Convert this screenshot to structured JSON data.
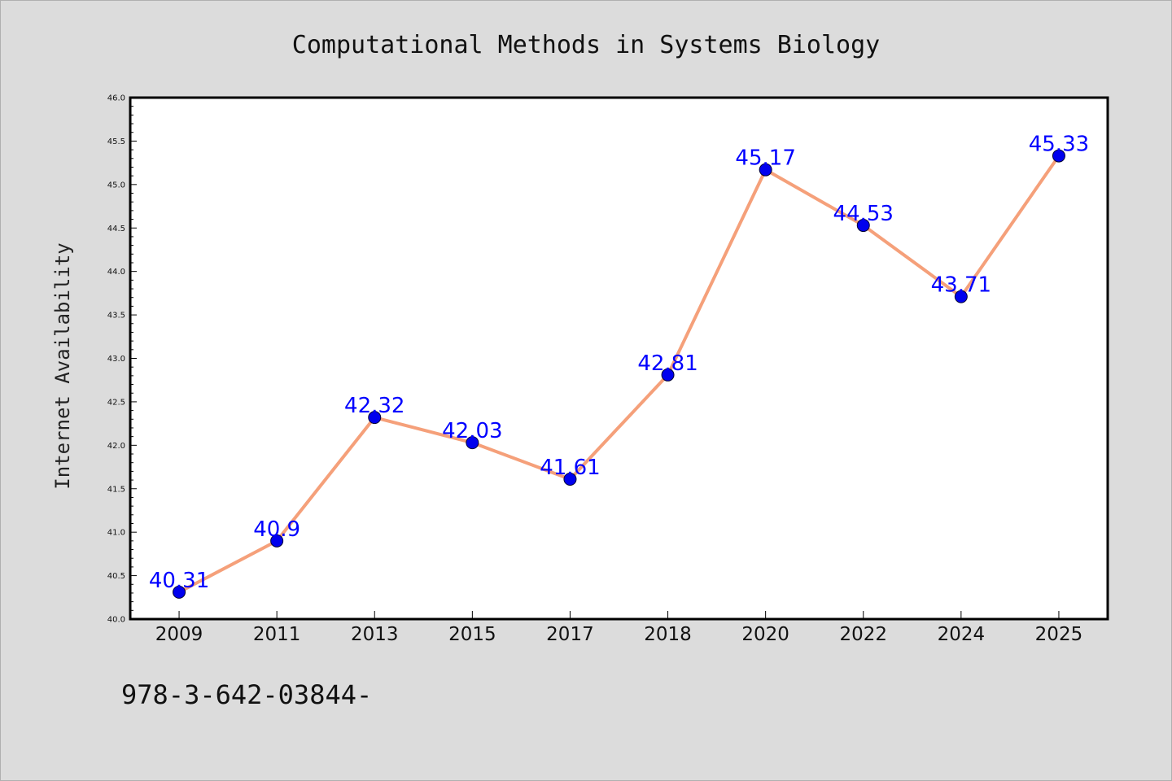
{
  "colors": {
    "background": "#dcdcdc",
    "plot_background": "#ffffff",
    "line": "#f5a07a",
    "marker": "#0000ee",
    "data_label": "#0000ff"
  },
  "footer_text": "978-3-642-03844-",
  "chart_data": {
    "type": "line",
    "title": "Computational Methods in Systems Biology",
    "xlabel": "",
    "ylabel": "Internet Availability",
    "categories": [
      "2009",
      "2011",
      "2013",
      "2015",
      "2017",
      "2018",
      "2020",
      "2022",
      "2024",
      "2025"
    ],
    "values": [
      40.31,
      40.9,
      42.32,
      42.03,
      41.61,
      42.81,
      45.17,
      44.53,
      43.71,
      45.33
    ],
    "data_labels": [
      "40.31",
      "40.9",
      "42.32",
      "42.03",
      "41.61",
      "42.81",
      "45.17",
      "44.53",
      "43.71",
      "45.33"
    ],
    "ylim": [
      40.0,
      46.0
    ],
    "yticks": [
      "40.0",
      "40.5",
      "41.0",
      "41.5",
      "42.0",
      "42.5",
      "43.0",
      "43.5",
      "44.0",
      "44.5",
      "45.0",
      "45.5",
      "46.0"
    ],
    "grid": false,
    "legend": "none"
  }
}
